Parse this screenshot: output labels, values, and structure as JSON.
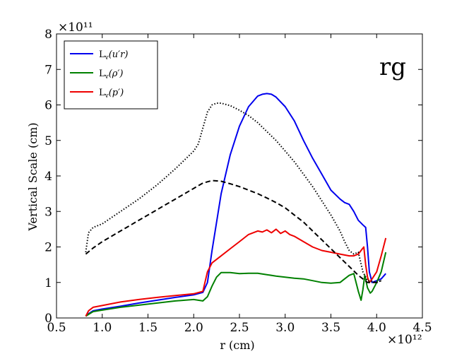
{
  "chart_data": {
    "type": "line",
    "title": "",
    "panel_label": "rg",
    "xlabel": "r (cm)",
    "ylabel": "Vertical Scale (cm)",
    "xlim": [
      0.5,
      4.5
    ],
    "ylim": [
      0,
      8
    ],
    "x_multiplier": "×10¹²",
    "y_multiplier": "×10¹¹",
    "x_ticks": [
      "0.5",
      "1.0",
      "1.5",
      "2.0",
      "2.5",
      "3.0",
      "3.5",
      "4.0",
      "4.5"
    ],
    "y_ticks": [
      "0",
      "1",
      "2",
      "3",
      "4",
      "5",
      "6",
      "7",
      "8"
    ],
    "legend_position": "top-left",
    "series": [
      {
        "name": "Lv(u′r)",
        "legend_main": "L",
        "legend_sub": "v",
        "legend_arg": "(u′r)",
        "color": "#0000ee",
        "style": "solid",
        "in_legend": true,
        "x": [
          0.82,
          0.85,
          0.9,
          1.0,
          1.2,
          1.4,
          1.6,
          1.8,
          2.0,
          2.1,
          2.15,
          2.2,
          2.3,
          2.4,
          2.5,
          2.6,
          2.7,
          2.75,
          2.8,
          2.85,
          2.9,
          3.0,
          3.1,
          3.2,
          3.3,
          3.4,
          3.5,
          3.6,
          3.65,
          3.7,
          3.75,
          3.8,
          3.85,
          3.88,
          3.9,
          3.92,
          3.95,
          4.0,
          4.05,
          4.1
        ],
        "y": [
          0.05,
          0.12,
          0.2,
          0.25,
          0.33,
          0.42,
          0.5,
          0.58,
          0.65,
          0.72,
          1.0,
          1.9,
          3.5,
          4.6,
          5.4,
          5.95,
          6.25,
          6.3,
          6.32,
          6.3,
          6.22,
          5.95,
          5.55,
          5.0,
          4.5,
          4.05,
          3.6,
          3.35,
          3.25,
          3.2,
          3.0,
          2.75,
          2.62,
          2.55,
          2.0,
          1.3,
          1.0,
          1.05,
          1.1,
          1.25
        ]
      },
      {
        "name": "Lv(ρ′)",
        "legend_main": "L",
        "legend_sub": "v",
        "legend_arg": "(ρ′)",
        "color": "#008000",
        "style": "solid",
        "in_legend": true,
        "x": [
          0.82,
          0.85,
          0.9,
          1.0,
          1.2,
          1.4,
          1.6,
          1.8,
          1.9,
          2.0,
          2.1,
          2.15,
          2.2,
          2.25,
          2.3,
          2.4,
          2.5,
          2.6,
          2.7,
          2.8,
          2.9,
          3.0,
          3.1,
          3.2,
          3.3,
          3.4,
          3.5,
          3.6,
          3.65,
          3.7,
          3.75,
          3.8,
          3.83,
          3.85,
          3.87,
          3.9,
          3.93,
          3.95,
          4.0,
          4.05,
          4.1
        ],
        "y": [
          0.05,
          0.1,
          0.18,
          0.22,
          0.3,
          0.36,
          0.42,
          0.48,
          0.5,
          0.52,
          0.48,
          0.6,
          0.9,
          1.15,
          1.28,
          1.28,
          1.25,
          1.26,
          1.26,
          1.22,
          1.18,
          1.15,
          1.12,
          1.1,
          1.05,
          1.0,
          0.98,
          1.0,
          1.1,
          1.2,
          1.25,
          0.75,
          0.5,
          0.8,
          1.2,
          0.85,
          0.7,
          0.75,
          1.0,
          1.3,
          1.85
        ]
      },
      {
        "name": "Lv(p′)",
        "legend_main": "L",
        "legend_sub": "v",
        "legend_arg": "(p′)",
        "color": "#ee0000",
        "style": "solid",
        "in_legend": true,
        "x": [
          0.82,
          0.85,
          0.9,
          1.0,
          1.2,
          1.4,
          1.6,
          1.8,
          2.0,
          2.1,
          2.15,
          2.2,
          2.3,
          2.4,
          2.5,
          2.6,
          2.7,
          2.75,
          2.8,
          2.85,
          2.9,
          2.95,
          3.0,
          3.05,
          3.1,
          3.2,
          3.3,
          3.4,
          3.5,
          3.6,
          3.7,
          3.75,
          3.8,
          3.83,
          3.86,
          3.88,
          3.9,
          3.92,
          3.95,
          4.0,
          4.05,
          4.1
        ],
        "y": [
          0.05,
          0.2,
          0.3,
          0.35,
          0.45,
          0.52,
          0.58,
          0.63,
          0.68,
          0.75,
          1.3,
          1.55,
          1.75,
          1.95,
          2.15,
          2.35,
          2.45,
          2.42,
          2.48,
          2.4,
          2.5,
          2.38,
          2.45,
          2.35,
          2.3,
          2.15,
          2.0,
          1.9,
          1.85,
          1.8,
          1.75,
          1.75,
          1.8,
          1.9,
          2.0,
          1.5,
          1.15,
          1.0,
          1.1,
          1.3,
          1.75,
          2.25
        ]
      },
      {
        "name": "dashed curve",
        "color": "#000000",
        "style": "dashed",
        "in_legend": false,
        "x": [
          0.82,
          0.9,
          1.0,
          1.2,
          1.4,
          1.6,
          1.8,
          2.0,
          2.1,
          2.2,
          2.3,
          2.4,
          2.5,
          2.6,
          2.7,
          2.8,
          2.9,
          3.0,
          3.1,
          3.2,
          3.3,
          3.4,
          3.5,
          3.6,
          3.7,
          3.8,
          3.9,
          4.0,
          4.05
        ],
        "y": [
          1.8,
          1.97,
          2.15,
          2.45,
          2.75,
          3.05,
          3.35,
          3.65,
          3.8,
          3.87,
          3.85,
          3.78,
          3.7,
          3.6,
          3.5,
          3.38,
          3.25,
          3.1,
          2.9,
          2.7,
          2.45,
          2.2,
          1.95,
          1.7,
          1.45,
          1.2,
          1.0,
          1.0,
          1.05
        ]
      },
      {
        "name": "dotted curve",
        "color": "#000000",
        "style": "dotted",
        "in_legend": false,
        "x": [
          0.82,
          0.85,
          0.9,
          1.0,
          1.2,
          1.4,
          1.6,
          1.8,
          2.0,
          2.05,
          2.1,
          2.15,
          2.2,
          2.25,
          2.3,
          2.4,
          2.5,
          2.6,
          2.7,
          2.8,
          2.9,
          3.0,
          3.1,
          3.2,
          3.3,
          3.4,
          3.5,
          3.6,
          3.65,
          3.7,
          3.75,
          3.8,
          3.85,
          3.9,
          4.0,
          4.05
        ],
        "y": [
          1.85,
          2.4,
          2.55,
          2.65,
          3.0,
          3.35,
          3.75,
          4.2,
          4.7,
          4.9,
          5.35,
          5.8,
          6.0,
          6.05,
          6.05,
          5.98,
          5.85,
          5.7,
          5.5,
          5.25,
          5.0,
          4.7,
          4.4,
          4.05,
          3.7,
          3.3,
          2.9,
          2.45,
          2.15,
          1.9,
          1.8,
          1.85,
          1.3,
          1.05,
          1.0,
          1.05
        ]
      }
    ]
  }
}
